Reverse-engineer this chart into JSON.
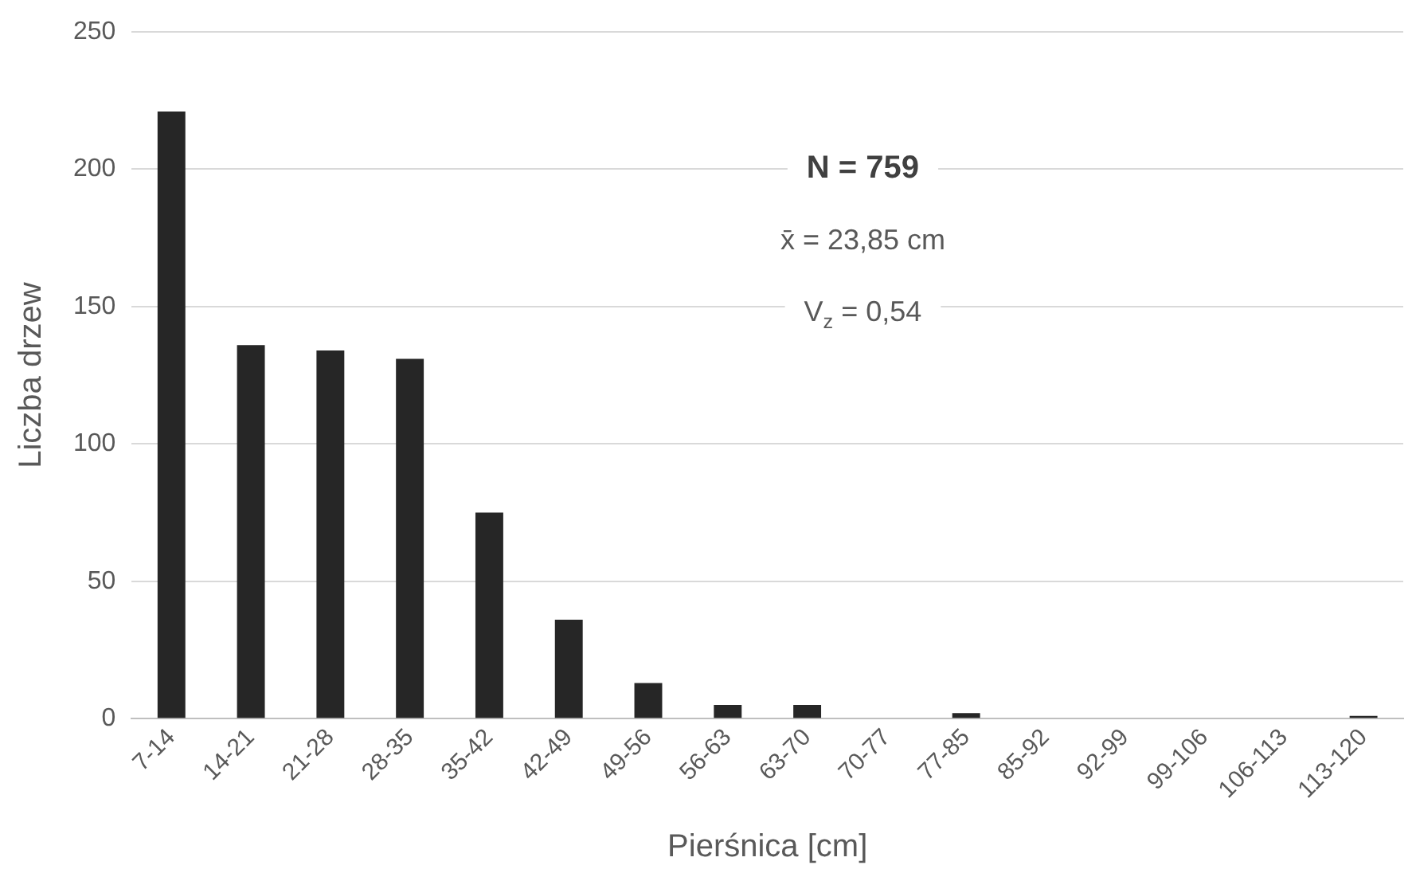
{
  "chart_data": {
    "type": "bar",
    "xlabel": "Pierśnica [cm]",
    "ylabel": "Liczba drzew",
    "categories": [
      "7-14",
      "14-21",
      "21-28",
      "28-35",
      "35-42",
      "42-49",
      "49-56",
      "56-63",
      "63-70",
      "70-77",
      "77-85",
      "85-92",
      "92-99",
      "99-106",
      "106-113",
      "113-120"
    ],
    "values": [
      221,
      136,
      134,
      131,
      75,
      36,
      13,
      5,
      5,
      0,
      2,
      0,
      0,
      0,
      0,
      1
    ],
    "color": "#262626",
    "ylim": [
      0,
      250
    ],
    "yticks": [
      0,
      50,
      100,
      150,
      200,
      250
    ],
    "grid": "y",
    "legend": false,
    "annotations": [
      "N = 759",
      "x̄ = 23,85 cm",
      "V$_{z}$ = 0,54"
    ]
  }
}
